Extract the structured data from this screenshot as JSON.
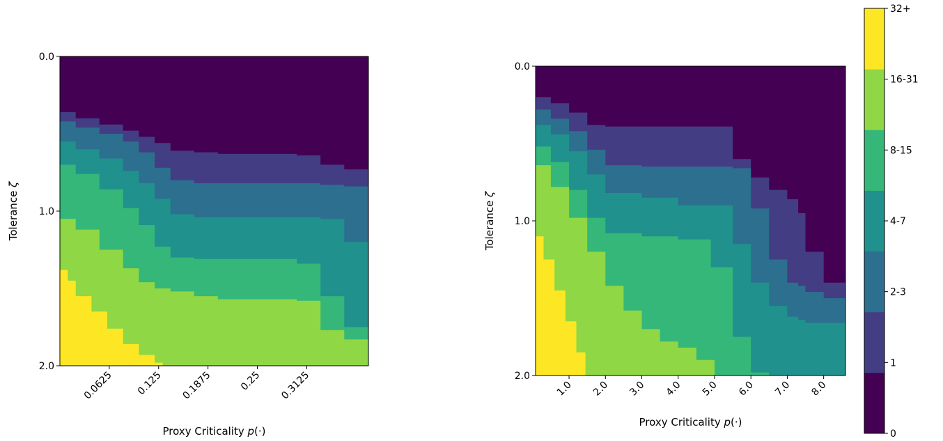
{
  "chart_data": [
    {
      "type": "heatmap",
      "title": "",
      "xlabel": "Proxy Criticality ",
      "xlabel_math": "p(·)",
      "ylabel": "Tolerance ",
      "ylabel_math": "ζ",
      "x_range": [
        0,
        0.390625
      ],
      "ylim": [
        0,
        2.0
      ],
      "y_inverted": true,
      "xticks": [
        0.0625,
        0.125,
        0.1875,
        0.25,
        0.3125
      ],
      "xtick_labels": [
        "0.0625",
        "0.125",
        "0.1875",
        "0.25",
        "0.3125"
      ],
      "yticks": [
        0.0,
        1.0,
        2.0
      ],
      "ytick_labels": [
        "0.0",
        "1.0",
        "2.0"
      ],
      "level_boundaries": [
        {
          "level": "1",
          "x": [
            0,
            0.02,
            0.05,
            0.08,
            0.1,
            0.12,
            0.14,
            0.17,
            0.2,
            0.23,
            0.27,
            0.3,
            0.33,
            0.36,
            0.39
          ],
          "y": [
            0.36,
            0.4,
            0.44,
            0.48,
            0.52,
            0.56,
            0.61,
            0.62,
            0.63,
            0.63,
            0.63,
            0.64,
            0.7,
            0.73,
            0.74
          ]
        },
        {
          "level": "2-3",
          "x": [
            0,
            0.02,
            0.05,
            0.08,
            0.1,
            0.12,
            0.14,
            0.17,
            0.2,
            0.23,
            0.27,
            0.3,
            0.33,
            0.36,
            0.39
          ],
          "y": [
            0.42,
            0.46,
            0.5,
            0.55,
            0.62,
            0.72,
            0.8,
            0.82,
            0.82,
            0.82,
            0.82,
            0.82,
            0.83,
            0.84,
            0.84
          ]
        },
        {
          "level": "4-7",
          "x": [
            0,
            0.02,
            0.05,
            0.08,
            0.1,
            0.12,
            0.14,
            0.17,
            0.2,
            0.23,
            0.27,
            0.3,
            0.33,
            0.36,
            0.39
          ],
          "y": [
            0.55,
            0.6,
            0.66,
            0.74,
            0.82,
            0.92,
            1.02,
            1.04,
            1.04,
            1.04,
            1.04,
            1.04,
            1.05,
            1.2,
            1.58
          ]
        },
        {
          "level": "8-15",
          "x": [
            0,
            0.02,
            0.05,
            0.08,
            0.1,
            0.12,
            0.14,
            0.17,
            0.2,
            0.23,
            0.27,
            0.3,
            0.33,
            0.36,
            0.39
          ],
          "y": [
            0.7,
            0.76,
            0.86,
            0.98,
            1.09,
            1.23,
            1.3,
            1.31,
            1.31,
            1.31,
            1.31,
            1.34,
            1.55,
            1.75,
            1.77
          ]
        },
        {
          "level": "16-31",
          "x": [
            0,
            0.02,
            0.05,
            0.08,
            0.1,
            0.12,
            0.14,
            0.17,
            0.2,
            0.23,
            0.27,
            0.3,
            0.33,
            0.36,
            0.39
          ],
          "y": [
            1.05,
            1.12,
            1.25,
            1.37,
            1.46,
            1.5,
            1.52,
            1.55,
            1.57,
            1.57,
            1.57,
            1.58,
            1.77,
            1.83,
            1.92
          ]
        },
        {
          "level": "32+",
          "x": [
            0,
            0.01,
            0.02,
            0.04,
            0.06,
            0.08,
            0.1,
            0.12,
            0.13
          ],
          "y": [
            1.38,
            1.45,
            1.55,
            1.65,
            1.76,
            1.86,
            1.93,
            1.98,
            2.0
          ]
        }
      ]
    },
    {
      "type": "heatmap",
      "title": "",
      "xlabel": "Proxy Criticality ",
      "xlabel_math": "p(·)",
      "ylabel": "Tolerance ",
      "ylabel_math": "ζ",
      "x_range": [
        0.08,
        8.6
      ],
      "ylim": [
        0,
        2.0
      ],
      "y_inverted": true,
      "xticks": [
        1.0,
        2.0,
        3.0,
        4.0,
        5.0,
        6.0,
        7.0,
        8.0
      ],
      "xtick_labels": [
        "1.0",
        "2.0",
        "3.0",
        "4.0",
        "5.0",
        "6.0",
        "7.0",
        "8.0"
      ],
      "yticks": [
        0.0,
        1.0,
        2.0
      ],
      "ytick_labels": [
        "0.0",
        "1.0",
        "2.0"
      ],
      "level_boundaries": [
        {
          "level": "1",
          "x": [
            0.08,
            0.5,
            1.0,
            1.5,
            2.0,
            3.0,
            4.0,
            4.9,
            5.5,
            6.0,
            6.5,
            7.0,
            7.3,
            7.5,
            8.0,
            8.6
          ],
          "y": [
            0.2,
            0.24,
            0.3,
            0.38,
            0.39,
            0.39,
            0.39,
            0.39,
            0.6,
            0.72,
            0.8,
            0.86,
            0.95,
            1.2,
            1.4,
            1.47
          ]
        },
        {
          "level": "2-3",
          "x": [
            0.08,
            0.5,
            1.0,
            1.5,
            2.0,
            3.0,
            4.0,
            4.9,
            5.5,
            6.0,
            6.5,
            7.0,
            7.3,
            7.5,
            8.0,
            8.6
          ],
          "y": [
            0.28,
            0.34,
            0.42,
            0.54,
            0.64,
            0.65,
            0.65,
            0.65,
            0.66,
            0.92,
            1.25,
            1.4,
            1.42,
            1.46,
            1.5,
            1.53
          ]
        },
        {
          "level": "4-7",
          "x": [
            0.08,
            0.5,
            1.0,
            1.5,
            2.0,
            3.0,
            4.0,
            4.9,
            5.5,
            6.0,
            6.5,
            7.0,
            7.3,
            7.5,
            8.0,
            8.6
          ],
          "y": [
            0.38,
            0.44,
            0.55,
            0.7,
            0.82,
            0.85,
            0.9,
            0.9,
            1.15,
            1.4,
            1.55,
            1.62,
            1.64,
            1.66,
            1.66,
            1.66
          ]
        },
        {
          "level": "8-15",
          "x": [
            0.08,
            0.5,
            1.0,
            1.5,
            2.0,
            3.0,
            4.0,
            4.9,
            5.5,
            6.0,
            6.5,
            7.0,
            7.3,
            7.5,
            8.0,
            8.6
          ],
          "y": [
            0.52,
            0.62,
            0.8,
            0.98,
            1.08,
            1.1,
            1.12,
            1.3,
            1.75,
            1.98,
            2.0,
            2.0,
            2.0,
            2.0,
            2.0,
            2.0
          ]
        },
        {
          "level": "16-31",
          "x": [
            0.08,
            0.5,
            1.0,
            1.5,
            2.0,
            2.5,
            3.0,
            3.5,
            4.0,
            4.5,
            5.0,
            5.5,
            6.0,
            8.6
          ],
          "y": [
            0.64,
            0.78,
            0.98,
            1.2,
            1.42,
            1.58,
            1.7,
            1.78,
            1.82,
            1.9,
            2.0,
            2.0,
            2.0,
            2.0
          ]
        },
        {
          "level": "32+",
          "x": [
            0.08,
            0.3,
            0.6,
            0.9,
            1.2,
            1.45
          ],
          "y": [
            1.1,
            1.25,
            1.45,
            1.65,
            1.85,
            2.0
          ]
        }
      ]
    }
  ],
  "colorbar": {
    "levels": [
      "0",
      "1",
      "2-3",
      "4-7",
      "8-15",
      "16-31",
      "32+"
    ],
    "colors": [
      "#440154",
      "#433d84",
      "#2d6f8e",
      "#20918c",
      "#35b779",
      "#8fd744",
      "#fde725"
    ]
  }
}
